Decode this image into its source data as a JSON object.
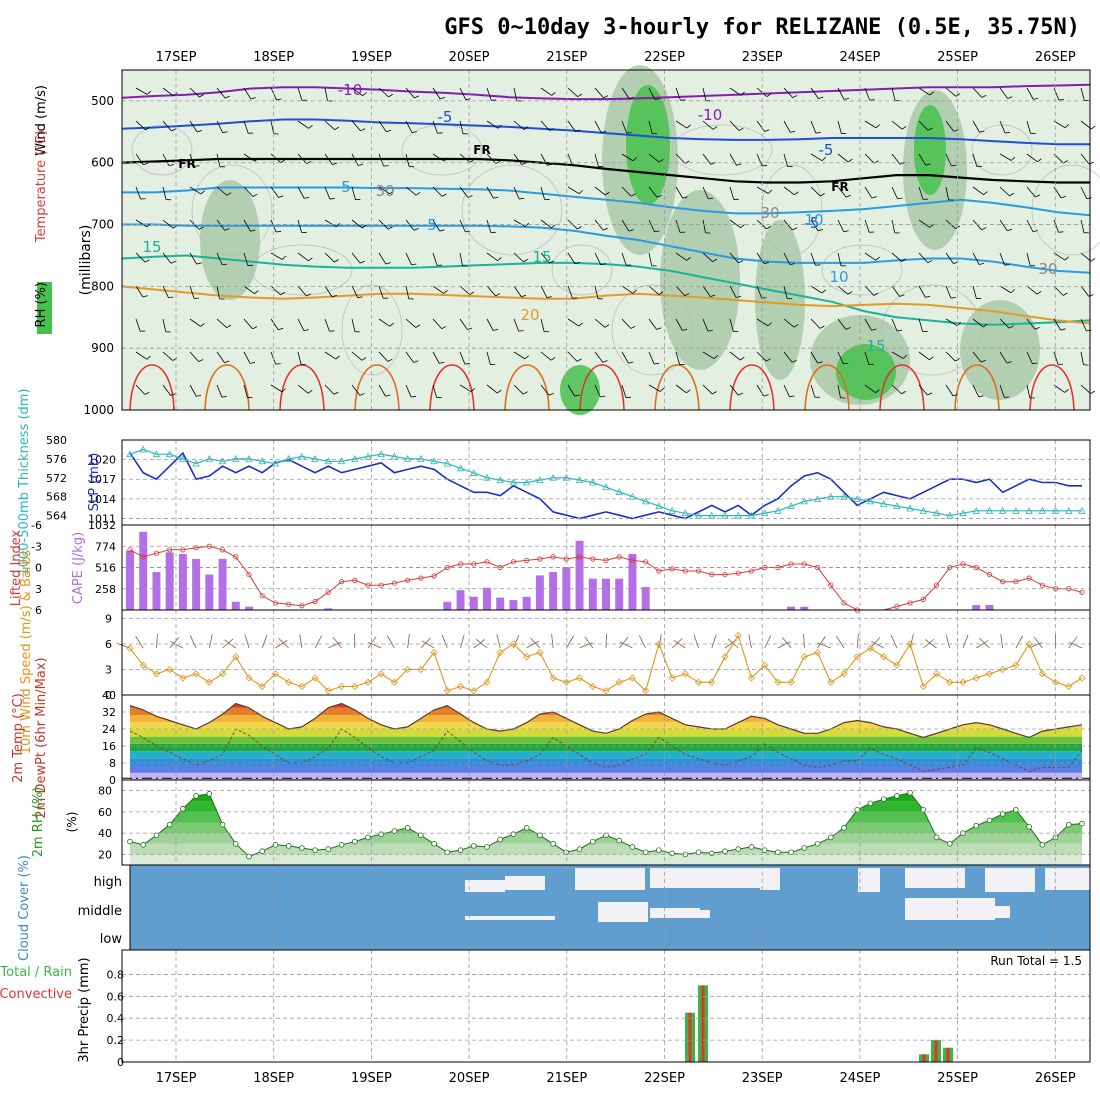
{
  "title": "GFS 0~10day 3-hourly for RELIZANE (0.5E, 35.75N)",
  "colors": {
    "temp_cold": "#8a1bb0",
    "temp_cool": "#1f4fd6",
    "temp_mid": "#2a9be0",
    "temp_warm": "#18b39a",
    "temp_hot": "#e39a2a",
    "temp_hotter": "#e06a1a",
    "freezing": "#000000",
    "rh_light": "#e3efe1",
    "rh_mid": "#a9c9a8",
    "rh_green": "#46c24c",
    "slp": "#1b2fc9",
    "thickness": "#2bb6b9",
    "cape": "#b36ee8",
    "lifted": "#d93a3a",
    "wind_speed": "#e0961c",
    "barb": "#8b5a3c",
    "cloud_bg": "#5f9ecf",
    "cloud_gap": "#f2f2f6",
    "precip_total": "#3bb54a",
    "precip_conv": "#e5332a"
  },
  "chart_data": [
    {
      "type": "heatmap",
      "name": "upper-air",
      "x_categories": [
        "17SEP",
        "18SEP",
        "19SEP",
        "20SEP",
        "21SEP",
        "22SEP",
        "23SEP",
        "24SEP",
        "25SEP",
        "26SEP"
      ],
      "ylabel": "(millibars)",
      "side_labels": [
        "Wind (m/s)",
        "Temperature (°C)",
        "RH (%)"
      ],
      "yticks": [
        500,
        600,
        700,
        800,
        900,
        1000
      ],
      "ylim": [
        1000,
        450
      ],
      "contour_labels": [
        "-10",
        "-10",
        "-5",
        "-5",
        "FR",
        "FR",
        "FR",
        "-5",
        "5",
        "5",
        "10",
        "10",
        "15",
        "15",
        "15",
        "20",
        "30",
        "30",
        "30"
      ],
      "isotherms": [
        {
          "label": "-10",
          "p": [
            495,
            492,
            490,
            486,
            480,
            478,
            478,
            480,
            482,
            485,
            487,
            490,
            494,
            496,
            497,
            497,
            496,
            494,
            492,
            490,
            488,
            486,
            484,
            482,
            480,
            478,
            478,
            478,
            476,
            475,
            474
          ]
        },
        {
          "label": "-5",
          "p": [
            545,
            543,
            540,
            537,
            533,
            530,
            530,
            532,
            535,
            536,
            538,
            540,
            542,
            545,
            548,
            552,
            556,
            560,
            562,
            563,
            563,
            562,
            560,
            560,
            560,
            560,
            562,
            565,
            568,
            570,
            570
          ]
        },
        {
          "label": "FR",
          "p": [
            600,
            598,
            596,
            594,
            594,
            594,
            594,
            594,
            594,
            594,
            594,
            594,
            596,
            600,
            604,
            610,
            615,
            620,
            625,
            630,
            632,
            632,
            630,
            625,
            620,
            620,
            624,
            628,
            630,
            632,
            632
          ]
        },
        {
          "label": "5",
          "p": [
            648,
            648,
            645,
            640,
            640,
            640,
            640,
            640,
            641,
            641,
            642,
            643,
            645,
            650,
            655,
            660,
            665,
            672,
            678,
            682,
            682,
            680,
            678,
            675,
            670,
            665,
            660,
            665,
            672,
            680,
            685
          ]
        },
        {
          "label": "10",
          "p": [
            700,
            700,
            702,
            702,
            702,
            702,
            702,
            702,
            702,
            702,
            702,
            702,
            703,
            705,
            710,
            718,
            725,
            735,
            745,
            755,
            760,
            762,
            762,
            762,
            758,
            755,
            755,
            760,
            768,
            775,
            778
          ]
        },
        {
          "label": "15",
          "p": [
            755,
            752,
            750,
            755,
            760,
            765,
            768,
            770,
            770,
            770,
            768,
            766,
            764,
            762,
            762,
            764,
            768,
            775,
            785,
            795,
            805,
            815,
            825,
            840,
            850,
            855,
            860,
            862,
            860,
            858,
            855
          ]
        }
      ]
    },
    {
      "type": "line",
      "name": "sea-level-pressure-and-thickness",
      "ylabel": "SLP (mb)",
      "y2label": "1000-500mb Thickness (dm)",
      "yticks": [
        1011,
        1014,
        1017,
        1020
      ],
      "y2ticks": [
        564,
        568,
        572,
        576,
        580
      ],
      "ylim": [
        1010,
        1023
      ],
      "y2lim": [
        562,
        580
      ],
      "series": [
        {
          "name": "SLP",
          "values": [
            1021,
            1018,
            1017,
            1019,
            1021,
            1017,
            1017.5,
            1019,
            1018,
            1019,
            1018,
            1019.5,
            1020,
            1019,
            1018,
            1019,
            1018,
            1018.5,
            1019,
            1019.5,
            1018,
            1018.5,
            1019,
            1018.5,
            1017,
            1016,
            1015,
            1015,
            1014.5,
            1016,
            1015,
            1014,
            1012,
            1011.5,
            1011,
            1011.5,
            1012,
            1011.5,
            1011,
            1011.5,
            1012,
            1011.5,
            1011,
            1012,
            1013,
            1012,
            1013,
            1011.5,
            1013,
            1014,
            1016,
            1017.5,
            1018,
            1017,
            1015,
            1013,
            1014,
            1015,
            1014.5,
            1014,
            1015,
            1016,
            1017,
            1017,
            1016.5,
            1017,
            1015,
            1016,
            1017,
            1016.5,
            1016.5,
            1016,
            1016
          ]
        },
        {
          "name": "Thickness",
          "values": [
            577,
            578,
            577,
            577,
            576,
            575,
            576,
            575.5,
            576,
            576,
            575.5,
            575,
            576,
            576.5,
            576,
            575.5,
            575.5,
            576,
            576.5,
            577,
            576.5,
            576,
            576,
            575.5,
            575,
            574,
            573,
            572,
            571.5,
            571,
            571,
            571.5,
            572,
            572,
            571.5,
            571,
            570,
            569,
            568,
            567,
            566,
            565,
            564.5,
            564,
            564,
            564,
            564,
            564,
            564.5,
            565,
            566,
            567,
            567.5,
            568,
            568,
            567.5,
            567,
            566.5,
            566,
            565.5,
            565,
            564.5,
            564,
            564.5,
            565,
            565,
            565,
            565,
            565,
            565,
            565,
            565,
            565
          ]
        }
      ]
    },
    {
      "type": "bar",
      "name": "cape-and-lifted-index",
      "ylabel": "CAPE (J/kg)",
      "y2label": "Lifted Index",
      "yticks": [
        258,
        516,
        774,
        1032
      ],
      "y2ticks": [
        "-6",
        "-3",
        "0",
        "3",
        "6"
      ],
      "ylim": [
        0,
        1032
      ],
      "y2lim": [
        6,
        -6
      ],
      "cape": [
        720,
        950,
        460,
        700,
        680,
        620,
        430,
        620,
        100,
        40,
        0,
        0,
        0,
        0,
        0,
        20,
        0,
        0,
        0,
        0,
        0,
        0,
        0,
        0,
        100,
        240,
        160,
        270,
        150,
        120,
        160,
        420,
        460,
        520,
        840,
        380,
        380,
        380,
        680,
        280,
        0,
        0,
        0,
        0,
        0,
        0,
        0,
        0,
        0,
        0,
        40,
        40,
        0,
        0,
        0,
        0,
        0,
        0,
        0,
        0,
        0,
        0,
        0,
        0,
        60,
        60,
        0,
        0,
        0,
        0,
        0,
        0,
        0
      ],
      "lifted_index": [
        -2.5,
        -1.5,
        -2,
        -2.5,
        -2.5,
        -2.8,
        -3,
        -2.5,
        -1.5,
        1,
        4,
        5,
        5.2,
        5.4,
        4.8,
        3.5,
        2,
        1.8,
        2.5,
        2.5,
        2.2,
        1.8,
        1.5,
        1.2,
        0,
        -0.5,
        -0.5,
        -0.8,
        0,
        -0.8,
        -1,
        -1.2,
        -1.5,
        -1.2,
        -1.5,
        -1.2,
        -1,
        -1.5,
        -1,
        -0.8,
        0.5,
        0.2,
        0.5,
        0.5,
        1,
        1,
        0.8,
        0.5,
        0,
        0,
        -0.5,
        -0.5,
        0,
        2.5,
        5,
        6,
        6.5,
        6.5,
        5.5,
        5,
        4.5,
        2.5,
        0,
        -0.5,
        0,
        1,
        2,
        2,
        1.5,
        2.5,
        3,
        3,
        3.5
      ]
    },
    {
      "type": "line",
      "name": "10m-wind",
      "ylabel": "10m Wind Speed (m/s) & Barbs",
      "yticks": [
        0,
        3,
        6,
        9
      ],
      "ylim": [
        0,
        10
      ],
      "values": [
        5.5,
        3.5,
        2.5,
        3,
        2,
        2.5,
        1.5,
        2.5,
        4.5,
        2,
        1,
        2.5,
        1.5,
        1,
        2,
        0.5,
        1,
        1,
        1.5,
        2.5,
        1.5,
        3,
        3,
        5,
        0.5,
        1,
        0.5,
        1.5,
        5,
        6,
        4.5,
        5,
        2,
        1.5,
        2,
        1,
        0.5,
        1.5,
        2,
        0.5,
        6,
        2,
        2.5,
        1.5,
        1.5,
        4.5,
        7,
        2,
        3.5,
        1.5,
        1.5,
        4.5,
        5,
        1.5,
        2.5,
        4.5,
        5.5,
        4.5,
        3.5,
        6,
        1,
        2.5,
        1.5,
        1.5,
        2,
        2.5,
        3,
        3.5,
        6,
        2.5,
        1.5,
        1,
        2
      ]
    },
    {
      "type": "area",
      "name": "2m-temperature",
      "ylabel": "2m Temp (°C)",
      "y2label": "2m DewPt (6hr Min/Max)",
      "yticks": [
        0,
        8,
        16,
        24,
        32,
        40
      ],
      "ylim": [
        0,
        40
      ],
      "temperature": [
        35,
        33,
        30,
        28,
        26,
        24,
        27,
        31,
        36,
        34,
        30,
        27,
        24,
        25,
        29,
        34,
        36,
        33,
        29,
        26,
        24,
        25,
        29,
        33,
        35,
        31,
        27,
        24,
        23,
        24,
        27,
        31,
        32,
        29,
        26,
        23,
        22,
        24,
        28,
        31,
        32,
        29,
        26,
        25,
        24,
        24,
        27,
        30,
        29,
        26,
        24,
        22,
        22,
        24,
        27,
        28,
        27,
        25,
        24,
        22,
        20,
        22,
        24,
        26,
        27,
        26,
        24,
        22,
        20,
        23,
        24,
        25,
        26
      ]
    },
    {
      "type": "area",
      "name": "2m-relative-humidity",
      "ylabel": "2m RH (%)",
      "yticks": [
        20,
        40,
        60,
        80
      ],
      "ylim": [
        10,
        90
      ],
      "values": [
        32,
        29,
        38,
        48,
        63,
        75,
        77,
        48,
        30,
        18,
        23,
        29,
        28,
        26,
        24,
        25,
        29,
        32,
        36,
        39,
        42,
        45,
        38,
        30,
        22,
        24,
        28,
        27,
        34,
        39,
        45,
        38,
        30,
        22,
        25,
        32,
        38,
        33,
        27,
        22,
        24,
        21,
        20,
        22,
        21,
        23,
        25,
        27,
        24,
        22,
        22,
        26,
        30,
        36,
        45,
        62,
        68,
        72,
        75,
        78,
        62,
        36,
        30,
        40,
        47,
        52,
        58,
        62,
        46,
        29,
        36,
        48,
        49
      ]
    },
    {
      "type": "heatmap",
      "name": "cloud-cover",
      "ylabel": "Cloud Cover (%)",
      "yticks": [
        "high",
        "middle",
        "low"
      ]
    },
    {
      "type": "bar",
      "name": "3hr-precipitation",
      "ylabel": "3hr Precip (mm)",
      "side_labels": [
        "Total / Rain",
        "Convective"
      ],
      "yticks": [
        0,
        0.2,
        0.4,
        0.6,
        0.8
      ],
      "ylim": [
        0,
        0.95
      ],
      "annotation": "Run Total = 1.5",
      "bars": [
        {
          "time": "22SEP 06",
          "total": 0.45,
          "convective": 0.45
        },
        {
          "time": "22SEP 09",
          "total": 0.7,
          "convective": 0.7
        },
        {
          "time": "24SEP 18",
          "total": 0.07,
          "convective": 0.07
        },
        {
          "time": "24SEP 21",
          "total": 0.2,
          "convective": 0.2
        },
        {
          "time": "25SEP 00",
          "total": 0.13,
          "convective": 0.13
        }
      ]
    }
  ]
}
